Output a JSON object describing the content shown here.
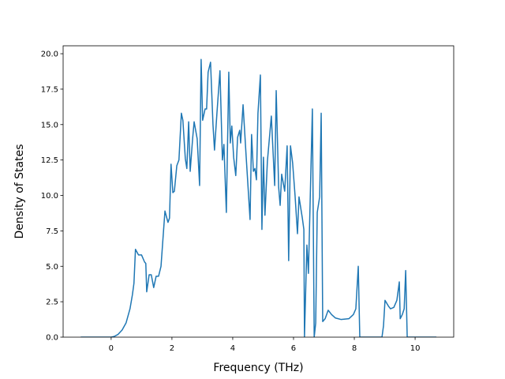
{
  "chart_data": {
    "type": "line",
    "xlabel": "Frequency (THz)",
    "ylabel": "Density of States",
    "xlim": [
      -1.58,
      11.27
    ],
    "ylim": [
      0,
      20.56
    ],
    "xticks": [
      0,
      2,
      4,
      6,
      8,
      10
    ],
    "yticks": [
      {
        "value": 0,
        "label": "0.0"
      },
      2.5,
      {
        "value": 5,
        "label": "5.0"
      },
      7.5,
      {
        "value": 10,
        "label": "10.0"
      },
      12.5,
      {
        "value": 15,
        "label": "15.0"
      },
      17.5,
      {
        "value": 20,
        "label": "20.0"
      }
    ],
    "grid": false,
    "series": [
      {
        "color": "#1f77b4",
        "x": [
          -1.0,
          0.0,
          0.1,
          0.23,
          0.36,
          0.49,
          0.62,
          0.7,
          0.75,
          0.8,
          0.9,
          1.0,
          1.1,
          1.14,
          1.17,
          1.25,
          1.32,
          1.4,
          1.48,
          1.56,
          1.64,
          1.69,
          1.77,
          1.87,
          1.92,
          1.97,
          2.03,
          2.08,
          2.16,
          2.23,
          2.31,
          2.36,
          2.44,
          2.49,
          2.55,
          2.6,
          2.68,
          2.73,
          2.83,
          2.91,
          2.96,
          3.01,
          3.09,
          3.14,
          3.19,
          3.27,
          3.35,
          3.4,
          3.48,
          3.58,
          3.66,
          3.71,
          3.79,
          3.87,
          3.92,
          3.97,
          4.03,
          4.1,
          4.16,
          4.23,
          4.26,
          4.34,
          4.44,
          4.57,
          4.62,
          4.68,
          4.73,
          4.78,
          4.83,
          4.91,
          4.96,
          5.01,
          5.06,
          5.14,
          5.27,
          5.38,
          5.43,
          5.51,
          5.56,
          5.61,
          5.71,
          5.79,
          5.84,
          5.9,
          5.97,
          6.05,
          6.13,
          6.18,
          6.29,
          6.34,
          6.36,
          6.44,
          6.49,
          6.62,
          6.68,
          6.73,
          6.78,
          6.86,
          6.91,
          6.96,
          7.04,
          7.14,
          7.25,
          7.38,
          7.56,
          7.82,
          7.97,
          8.05,
          8.13,
          8.18,
          8.91,
          8.96,
          9.01,
          9.12,
          9.19,
          9.3,
          9.4,
          9.48,
          9.51,
          9.58,
          9.64,
          9.69,
          9.74,
          10.7
        ],
        "values": [
          0,
          0,
          0.05,
          0.2,
          0.5,
          1.0,
          2.0,
          3.0,
          3.8,
          6.2,
          5.8,
          5.8,
          5.3,
          5.2,
          3.2,
          4.4,
          4.4,
          3.5,
          4.3,
          4.3,
          5.0,
          6.5,
          8.9,
          8.1,
          8.4,
          12.2,
          10.2,
          10.3,
          12.1,
          12.5,
          15.8,
          15.3,
          12.6,
          11.9,
          15.2,
          11.7,
          14.0,
          15.2,
          14.0,
          10.7,
          19.6,
          15.3,
          16.1,
          16.1,
          18.7,
          19.4,
          15.0,
          13.2,
          15.8,
          18.8,
          12.5,
          13.6,
          8.8,
          18.7,
          13.7,
          14.9,
          12.7,
          11.4,
          14.1,
          14.6,
          13.7,
          16.4,
          12.8,
          8.3,
          14.3,
          11.7,
          11.9,
          11.1,
          15.8,
          18.5,
          7.6,
          12.7,
          8.6,
          12.4,
          15.6,
          10.7,
          17.4,
          10.6,
          9.3,
          11.5,
          10.3,
          13.5,
          5.4,
          13.5,
          12.3,
          10.0,
          7.3,
          9.9,
          8.4,
          7.6,
          0,
          6.5,
          4.5,
          16.1,
          0,
          1.0,
          8.8,
          9.9,
          15.8,
          1.1,
          1.3,
          1.9,
          1.6,
          1.35,
          1.25,
          1.3,
          1.6,
          2.0,
          5.0,
          0,
          0,
          0.8,
          2.6,
          2.2,
          2.0,
          2.1,
          2.6,
          3.9,
          1.3,
          1.6,
          2.0,
          4.7,
          0,
          0
        ]
      }
    ]
  }
}
